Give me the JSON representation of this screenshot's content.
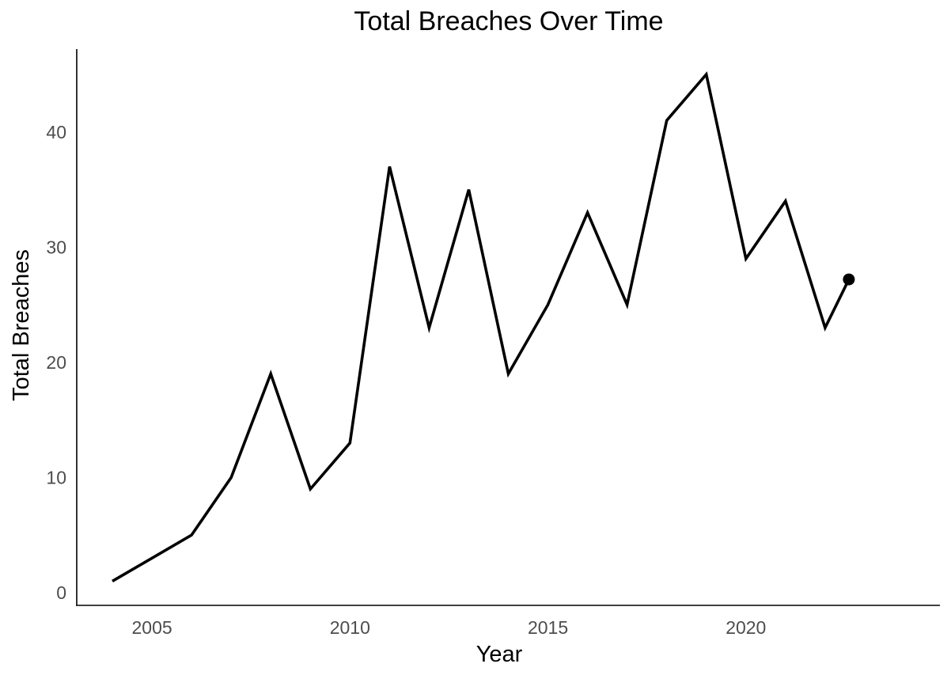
{
  "chart_data": {
    "type": "line",
    "title": "Total Breaches Over Time",
    "xlabel": "Year",
    "ylabel": "Total Breaches",
    "x": [
      2004,
      2005,
      2006,
      2007,
      2008,
      2009,
      2010,
      2011,
      2012,
      2013,
      2014,
      2015,
      2016,
      2017,
      2018,
      2019,
      2020,
      2021,
      2022,
      2022.6
    ],
    "series": [
      {
        "values": [
          1,
          3,
          5,
          10,
          19,
          9,
          13,
          37,
          23,
          35,
          19,
          25,
          33,
          25,
          41,
          45,
          29,
          34,
          23,
          27.2
        ],
        "color": "#000000"
      }
    ],
    "end_marker": {
      "x": 2022.6,
      "y": 27.2
    },
    "xticks": [
      "2005",
      "2010",
      "2015",
      "2020"
    ],
    "yticks": [
      "0",
      "10",
      "20",
      "30",
      "40"
    ],
    "xlim": [
      2003.1,
      2024.9
    ],
    "ylim": [
      -1.1,
      47.2
    ],
    "grid": false
  }
}
